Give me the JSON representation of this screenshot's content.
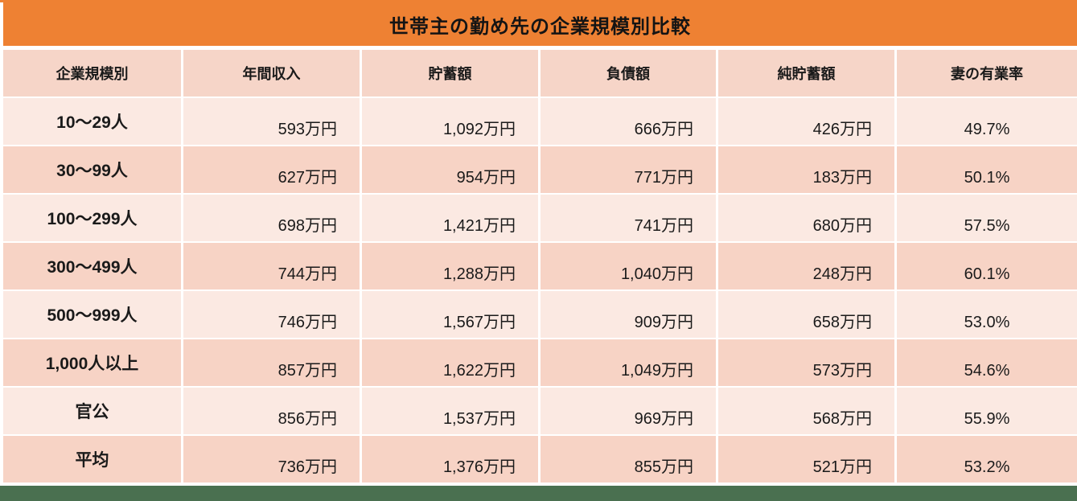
{
  "title": "世帯主の勤め先の企業規模別比較",
  "table": {
    "columns": [
      "企業規模別",
      "年間収入",
      "貯蓄額",
      "負債額",
      "純貯蓄額",
      "妻の有業率"
    ],
    "rows": [
      [
        "10〜29人",
        "593万円",
        "1,092万円",
        "666万円",
        "426万円",
        "49.7%"
      ],
      [
        "30〜99人",
        "627万円",
        "954万円",
        "771万円",
        "183万円",
        "50.1%"
      ],
      [
        "100〜299人",
        "698万円",
        "1,421万円",
        "741万円",
        "680万円",
        "57.5%"
      ],
      [
        "300〜499人",
        "744万円",
        "1,288万円",
        "1,040万円",
        "248万円",
        "60.1%"
      ],
      [
        "500〜999人",
        "746万円",
        "1,567万円",
        "909万円",
        "658万円",
        "53.0%"
      ],
      [
        "1,000人以上",
        "857万円",
        "1,622万円",
        "1,049万円",
        "573万円",
        "54.6%"
      ],
      [
        "官公",
        "856万円",
        "1,537万円",
        "969万円",
        "568万円",
        "55.9%"
      ],
      [
        "平均",
        "736万円",
        "1,376万円",
        "855万円",
        "521万円",
        "53.2%"
      ]
    ]
  },
  "chart_data": {
    "type": "table",
    "title": "世帯主の勤め先の企業規模別比較",
    "columns": [
      "企業規模別",
      "年間収入",
      "貯蓄額",
      "負債額",
      "純貯蓄額",
      "妻の有業率"
    ],
    "unit_note": "金額は万円、妻の有業率は%",
    "rows": [
      {
        "category": "10〜29人",
        "annual_income": 593,
        "savings": 1092,
        "debt": 666,
        "net_savings": 426,
        "wife_employment_rate": 49.7
      },
      {
        "category": "30〜99人",
        "annual_income": 627,
        "savings": 954,
        "debt": 771,
        "net_savings": 183,
        "wife_employment_rate": 50.1
      },
      {
        "category": "100〜299人",
        "annual_income": 698,
        "savings": 1421,
        "debt": 741,
        "net_savings": 680,
        "wife_employment_rate": 57.5
      },
      {
        "category": "300〜499人",
        "annual_income": 744,
        "savings": 1288,
        "debt": 1040,
        "net_savings": 248,
        "wife_employment_rate": 60.1
      },
      {
        "category": "500〜999人",
        "annual_income": 746,
        "savings": 1567,
        "debt": 909,
        "net_savings": 658,
        "wife_employment_rate": 53.0
      },
      {
        "category": "1,000人以上",
        "annual_income": 857,
        "savings": 1622,
        "debt": 1049,
        "net_savings": 573,
        "wife_employment_rate": 54.6
      },
      {
        "category": "官公",
        "annual_income": 856,
        "savings": 1537,
        "debt": 969,
        "net_savings": 568,
        "wife_employment_rate": 55.9
      },
      {
        "category": "平均",
        "annual_income": 736,
        "savings": 1376,
        "debt": 855,
        "net_savings": 521,
        "wife_employment_rate": 53.2
      }
    ]
  },
  "colors": {
    "title_bar": "#EE8133",
    "header_row": "#F6D5C8",
    "row_light": "#FBE9E2",
    "row_dark": "#F7D3C5",
    "bottom_bar": "#4A7050",
    "gridline": "#FFFFFF",
    "text": "#1A1A1A"
  }
}
